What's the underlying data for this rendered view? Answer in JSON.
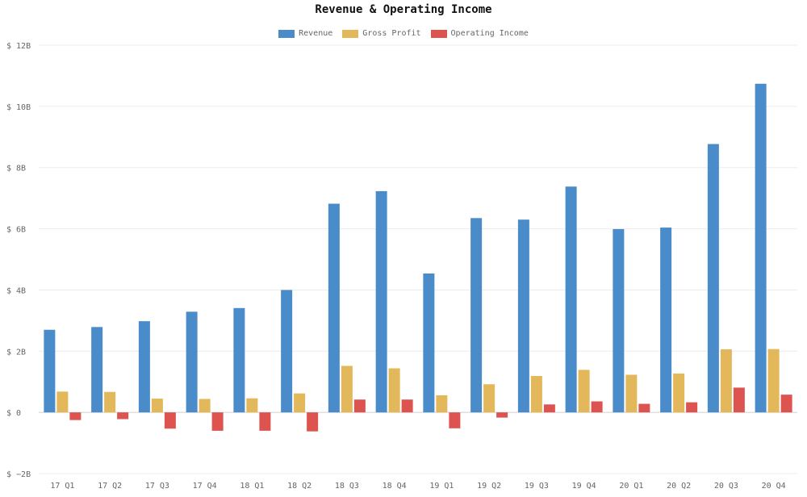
{
  "chart_data": {
    "type": "bar",
    "title": "Revenue & Operating Income",
    "xlabel": "",
    "ylabel": "",
    "categories": [
      "17 Q1",
      "17 Q2",
      "17 Q3",
      "17 Q4",
      "18 Q1",
      "18 Q2",
      "18 Q3",
      "18 Q4",
      "19 Q1",
      "19 Q2",
      "19 Q3",
      "19 Q4",
      "20 Q1",
      "20 Q2",
      "20 Q3",
      "20 Q4"
    ],
    "series": [
      {
        "name": "Revenue",
        "color": "#4a8cca",
        "values": [
          2.7,
          2.79,
          2.98,
          3.29,
          3.41,
          4.0,
          6.82,
          7.23,
          4.54,
          6.35,
          6.3,
          7.38,
          5.99,
          6.04,
          8.77,
          10.74
        ]
      },
      {
        "name": "Gross Profit",
        "color": "#e3b85a",
        "values": [
          0.68,
          0.67,
          0.45,
          0.44,
          0.46,
          0.62,
          1.52,
          1.44,
          0.56,
          0.92,
          1.19,
          1.39,
          1.23,
          1.27,
          2.06,
          2.07
        ]
      },
      {
        "name": "Operating Income",
        "color": "#dd5350",
        "values": [
          -0.25,
          -0.22,
          -0.53,
          -0.6,
          -0.6,
          -0.62,
          0.42,
          0.42,
          -0.52,
          -0.17,
          0.26,
          0.36,
          0.28,
          0.33,
          0.81,
          0.58
        ]
      }
    ],
    "unit": "B",
    "currency": "$",
    "ylim": [
      -2,
      12
    ],
    "yticks": [
      "$ −2B",
      "$ 0",
      "$ 2B",
      "$ 4B",
      "$ 6B",
      "$ 8B",
      "$ 10B",
      "$ 12B"
    ],
    "grid": true,
    "legend_position": "top"
  }
}
